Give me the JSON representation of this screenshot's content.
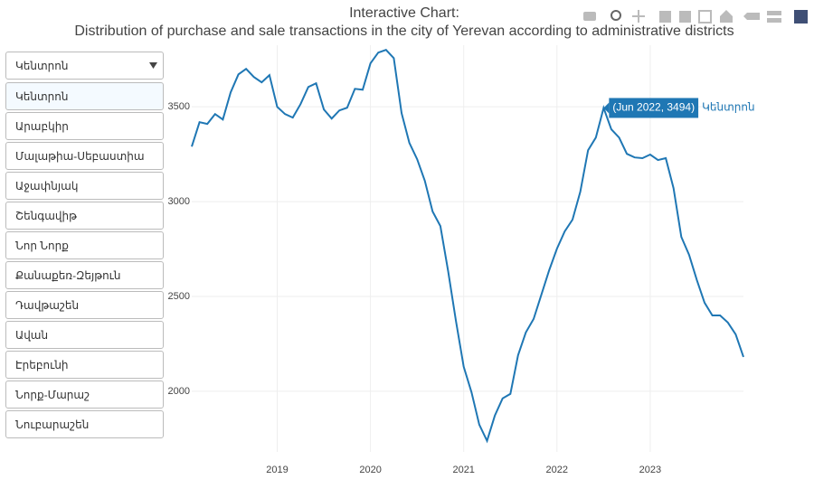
{
  "chart_data": {
    "type": "line",
    "title": "Interactive Chart:",
    "subtitle": "Distribution of purchase and sale transactions in the city of Yerevan according to administrative districts",
    "x": [
      "Jan 2018",
      "Feb 2018",
      "Mar 2018",
      "Apr 2018",
      "May 2018",
      "Jun 2018",
      "Jul 2018",
      "Aug 2018",
      "Sep 2018",
      "Oct 2018",
      "Nov 2018",
      "Dec 2018",
      "Jan 2019",
      "Feb 2019",
      "Mar 2019",
      "Apr 2019",
      "May 2019",
      "Jun 2019",
      "Jul 2019",
      "Aug 2019",
      "Sep 2019",
      "Oct 2019",
      "Nov 2019",
      "Dec 2019",
      "Jan 2020",
      "Feb 2020",
      "Mar 2020",
      "Apr 2020",
      "May 2020",
      "Jun 2020",
      "Jul 2020",
      "Aug 2020",
      "Sep 2020",
      "Oct 2020",
      "Nov 2020",
      "Dec 2020",
      "Jan 2021",
      "Feb 2021",
      "Mar 2021",
      "Apr 2021",
      "May 2021",
      "Jun 2021",
      "Jul 2021",
      "Aug 2021",
      "Sep 2021",
      "Oct 2021",
      "Nov 2021",
      "Dec 2021",
      "Jan 2022",
      "Feb 2022",
      "Mar 2022",
      "Apr 2022",
      "May 2022",
      "Jun 2022",
      "Jul 2022",
      "Aug 2022",
      "Sep 2022",
      "Oct 2022",
      "Nov 2022",
      "Dec 2022",
      "Jan 2023",
      "Feb 2023",
      "Mar 2023",
      "Apr 2023",
      "May 2023",
      "Jun 2023",
      "Jul 2023",
      "Aug 2023",
      "Sep 2023",
      "Oct 2023",
      "Nov 2023",
      "Dec 2023"
    ],
    "series": [
      {
        "name": "Կենտրոն",
        "color": "#1f77b4",
        "values": [
          3290,
          3419,
          3410,
          3462,
          3433,
          3576,
          3671,
          3700,
          3657,
          3629,
          3667,
          3500,
          3462,
          3443,
          3514,
          3605,
          3624,
          3486,
          3438,
          3481,
          3495,
          3595,
          3590,
          3729,
          3786,
          3800,
          3757,
          3467,
          3310,
          3224,
          3110,
          2948,
          2871,
          2633,
          2371,
          2129,
          1995,
          1824,
          1738,
          1871,
          1962,
          1986,
          2190,
          2310,
          2381,
          2510,
          2638,
          2752,
          2843,
          2905,
          3052,
          3271,
          3338,
          3494,
          3381,
          3338,
          3252,
          3233,
          3229,
          3248,
          3219,
          3229,
          3071,
          2814,
          2719,
          2586,
          2467,
          2400,
          2400,
          2362,
          2300,
          2181
        ]
      }
    ],
    "hover_label": "(Jun 2022, 3494)",
    "xlim": [
      2018.0833,
      2024.0
    ],
    "xticks": [
      2019,
      2020,
      2021,
      2022,
      2023
    ],
    "ylim": [
      1680,
      3825
    ],
    "yticks": [
      2000,
      2500,
      3000,
      3500
    ],
    "grid": true,
    "menu": {
      "selected": "Կենտրոն",
      "options": [
        "Կենտրոն",
        "Արաբկիր",
        "Մալաթիա-Սեբաստիա",
        "Աջափնյակ",
        "Շենգավիթ",
        "Նոր Նորք",
        "Քանաքեռ-Զեյթուն",
        "Դավթաշեն",
        "Ավան",
        "Էրեբունի",
        "Նորք-Մարաշ",
        "Նուբարաշեն"
      ]
    }
  }
}
